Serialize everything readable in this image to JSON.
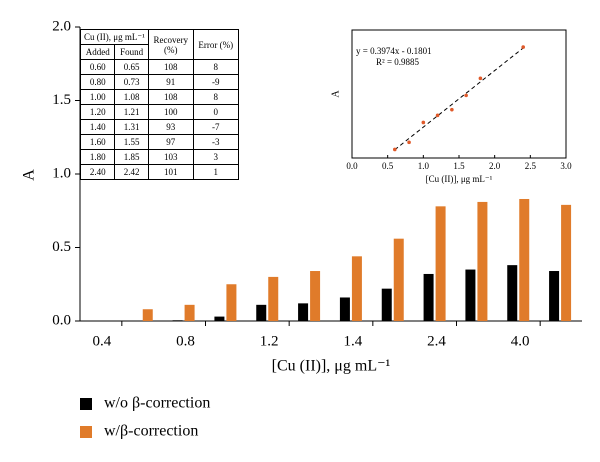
{
  "chart_data": [
    {
      "type": "bar",
      "ylabel": "A",
      "xlabel": "[Cu (II)], μg mL⁻¹",
      "categories": [
        "0.4",
        null,
        "0.8",
        null,
        "1.2",
        null,
        "1.4",
        null,
        "2.4",
        null,
        "4.0",
        null
      ],
      "series": [
        {
          "name": "w/o β-correction",
          "color": "#000000",
          "values": [
            null,
            null,
            0.005,
            0.03,
            0.11,
            0.12,
            0.16,
            0.22,
            0.32,
            0.35,
            0.38,
            0.34
          ]
        },
        {
          "name": "w/β-correction",
          "color": "#e07b2a",
          "values": [
            null,
            0.08,
            0.11,
            0.25,
            0.3,
            0.34,
            0.44,
            0.56,
            0.78,
            0.81,
            0.83,
            0.79
          ]
        }
      ],
      "ylim": [
        0,
        2.0
      ],
      "yticks": [
        {
          "value": 0,
          "label": "0.0"
        },
        0.5,
        {
          "value": 1,
          "label": "1.0"
        },
        1.5,
        {
          "value": 2,
          "label": "2.0"
        }
      ],
      "legend": "bottom-left"
    },
    {
      "type": "scatter",
      "ylabel": "A",
      "xlabel": "[Cu (II)], μg mL⁻¹",
      "x": [
        0.6,
        0.8,
        1.0,
        1.2,
        1.4,
        1.6,
        1.8,
        2.4
      ],
      "values": [
        0.06,
        0.11,
        0.25,
        0.3,
        0.34,
        0.44,
        0.56,
        0.78
      ],
      "color": "#e05a2a",
      "xlim": [
        0,
        3.0
      ],
      "xticks": [
        {
          "value": 0,
          "label": "0.0"
        },
        0.5,
        {
          "value": 1,
          "label": "1.0"
        },
        1.5,
        {
          "value": 2,
          "label": "2.0"
        },
        2.5,
        {
          "value": 3,
          "label": "3.0"
        }
      ],
      "ylim": [
        0,
        0.9
      ],
      "fit": {
        "slope": 0.3974,
        "intercept": -0.1801
      },
      "annotations": [
        "y = 0.3974x - 0.1801",
        "R² = 0.9885"
      ]
    }
  ],
  "table": {
    "header": [
      "Cu (II), μg mL⁻¹",
      "Recovery (%)",
      "Error (%)"
    ],
    "subheader": [
      "Added",
      "Found"
    ],
    "rows": [
      [
        "0.60",
        "0.65",
        "108",
        "8"
      ],
      [
        "0.80",
        "0.73",
        "91",
        "-9"
      ],
      [
        "1.00",
        "1.08",
        "108",
        "8"
      ],
      [
        "1.20",
        "1.21",
        "100",
        "0"
      ],
      [
        "1.40",
        "1.31",
        "93",
        "-7"
      ],
      [
        "1.60",
        "1.55",
        "97",
        "-3"
      ],
      [
        "1.80",
        "1.85",
        "103",
        "3"
      ],
      [
        "2.40",
        "2.42",
        "101",
        "1"
      ]
    ]
  }
}
